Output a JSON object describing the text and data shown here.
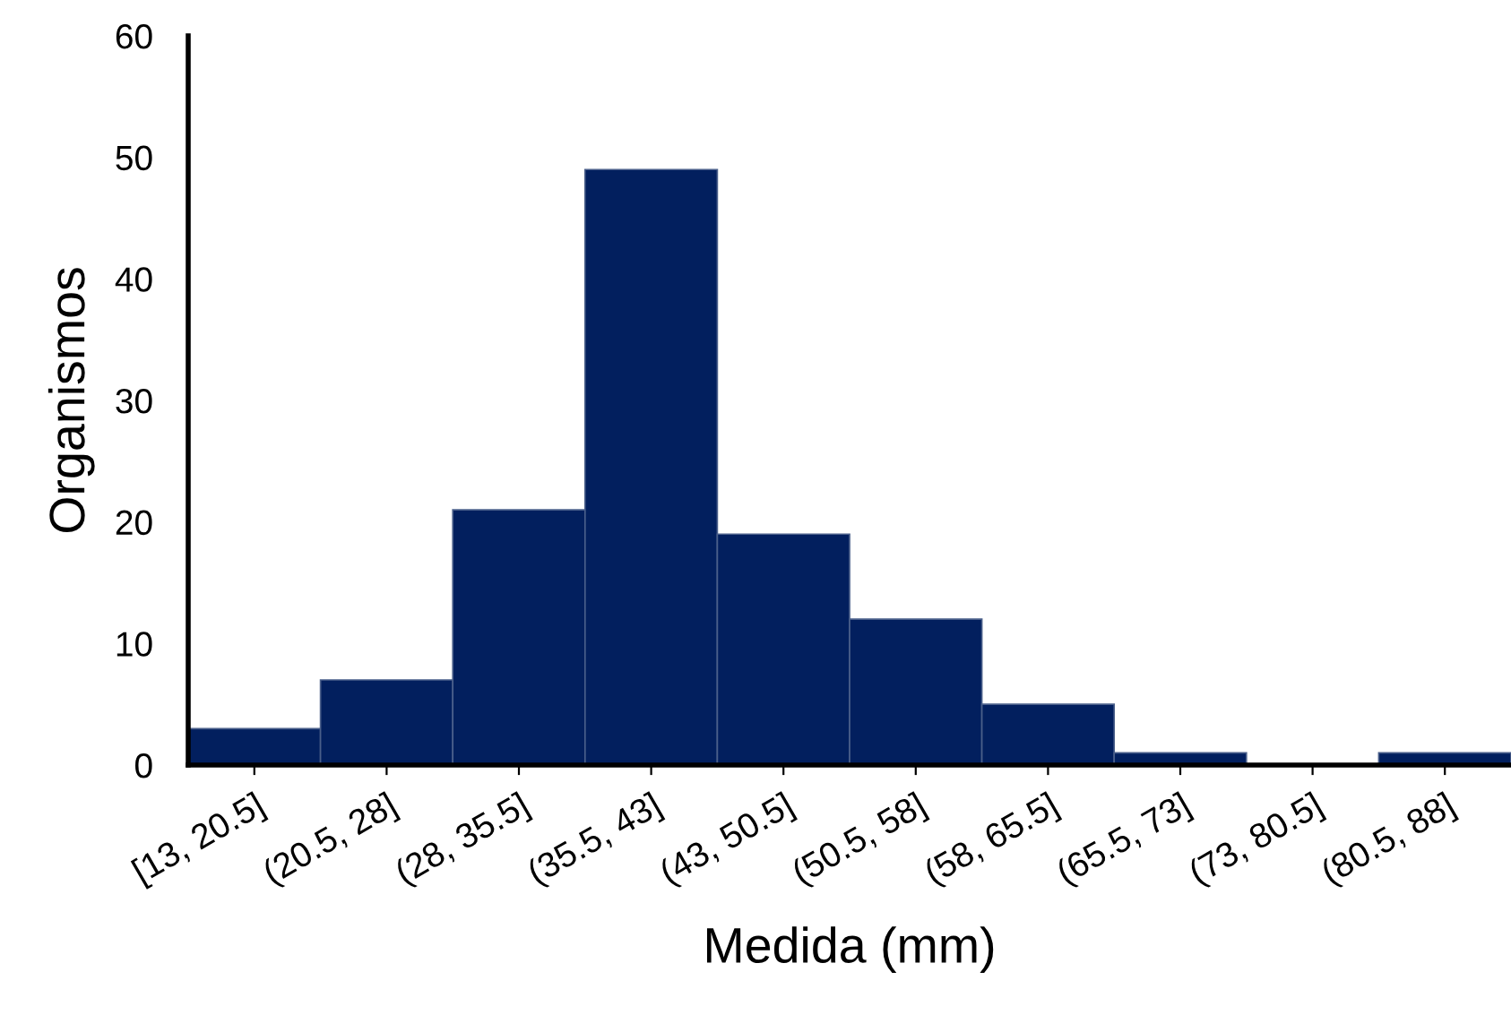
{
  "chart_data": {
    "type": "bar",
    "xlabel": "Medida (mm)",
    "ylabel": "Organismos",
    "categories": [
      "[13, 20.5]",
      "(20.5, 28]",
      "(28, 35.5]",
      "(35.5, 43]",
      "(43, 50.5]",
      "(50.5, 58]",
      "(58, 65.5]",
      "(65.5, 73]",
      "(73, 80.5]",
      "(80.5, 88]"
    ],
    "values": [
      3,
      7,
      21,
      49,
      19,
      12,
      5,
      1,
      0,
      1
    ],
    "color": "#021f5e",
    "ylim": [
      0,
      60
    ],
    "yticks": [
      0,
      10,
      20,
      30,
      40,
      50,
      60
    ],
    "grid": false,
    "legend": false
  }
}
